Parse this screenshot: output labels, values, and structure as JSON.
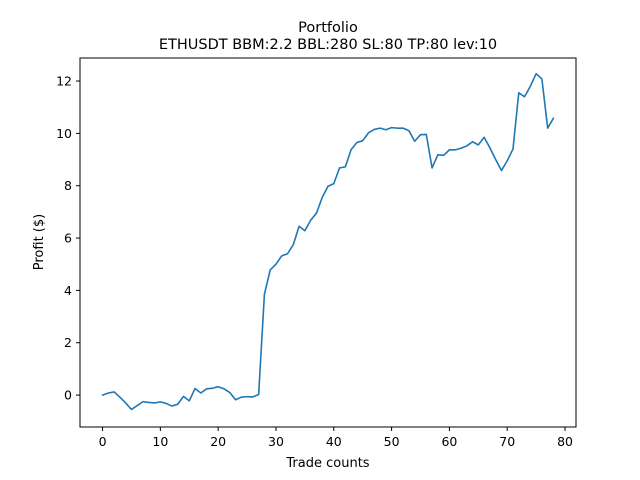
{
  "chart_data": {
    "type": "line",
    "title": "Portfolio",
    "subtitle": "ETHUSDT BBM:2.2 BBL:280 SL:80 TP:80 lev:10",
    "xlabel": "Trade counts",
    "ylabel": "Profit ($)",
    "xlim": [
      -3.9,
      81.9
    ],
    "ylim": [
      -1.22,
      12.88
    ],
    "xticks": [
      0,
      10,
      20,
      30,
      40,
      50,
      60,
      70,
      80
    ],
    "yticks": [
      0,
      2,
      4,
      6,
      8,
      10,
      12
    ],
    "grid": false,
    "line_color": "#1f77b4",
    "series": [
      {
        "x": [
          0,
          1,
          2,
          3,
          4,
          5,
          6,
          7,
          8,
          9,
          10,
          11,
          12,
          13,
          14,
          15,
          16,
          17,
          18,
          19,
          20,
          21,
          22,
          23,
          24,
          25,
          26,
          27,
          28,
          29,
          30,
          31,
          32,
          33,
          34,
          35,
          36,
          37,
          38,
          39,
          40,
          41,
          42,
          43,
          44,
          45,
          46,
          47,
          48,
          49,
          50,
          51,
          52,
          53,
          54,
          55,
          56,
          57,
          58,
          59,
          60,
          61,
          62,
          63,
          64,
          65,
          66,
          67,
          68,
          69,
          70,
          71,
          72,
          73,
          74,
          75,
          76,
          77,
          78
        ],
        "values": [
          0.0,
          0.08,
          0.12,
          -0.08,
          -0.3,
          -0.55,
          -0.4,
          -0.25,
          -0.28,
          -0.3,
          -0.26,
          -0.32,
          -0.42,
          -0.35,
          -0.05,
          -0.22,
          0.25,
          0.08,
          0.24,
          0.26,
          0.32,
          0.24,
          0.1,
          -0.18,
          -0.08,
          -0.06,
          -0.07,
          0.02,
          3.85,
          4.78,
          5.0,
          5.32,
          5.4,
          5.75,
          6.45,
          6.28,
          6.68,
          6.95,
          7.55,
          7.98,
          8.08,
          8.68,
          8.72,
          9.38,
          9.65,
          9.72,
          10.02,
          10.15,
          10.2,
          10.14,
          10.22,
          10.2,
          10.2,
          10.1,
          9.7,
          9.95,
          9.96,
          8.68,
          9.18,
          9.16,
          9.37,
          9.37,
          9.43,
          9.52,
          9.68,
          9.56,
          9.85,
          9.45,
          9.0,
          8.58,
          8.95,
          9.4,
          11.55,
          11.4,
          11.8,
          12.28,
          12.08,
          10.2,
          10.58
        ]
      }
    ]
  }
}
